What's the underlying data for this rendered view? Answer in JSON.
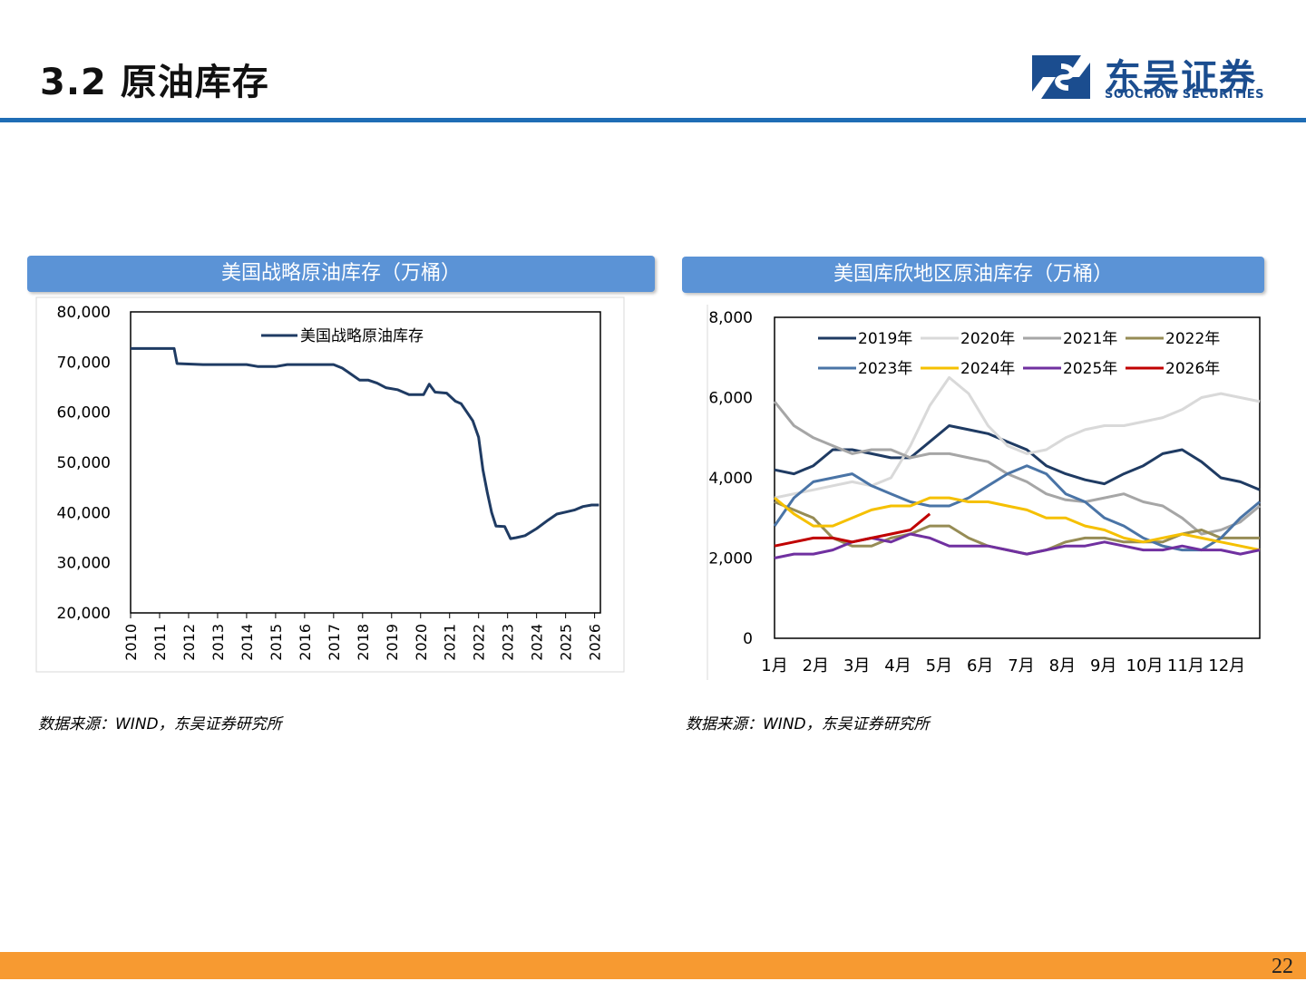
{
  "header": {
    "title": "3.2 原油库存"
  },
  "logo": {
    "cn": "东吴证券",
    "en": "SOOCHOW SECURITIES"
  },
  "panels": [
    {
      "title": "美国战略原油库存（万桶）",
      "source": "数据来源：WIND，东吴证券研究所"
    },
    {
      "title": "美国库欣地区原油库存（万桶）",
      "source": "数据来源：WIND，东吴证券研究所"
    }
  ],
  "footer": {
    "page_number": "22"
  },
  "chart_data": [
    {
      "type": "line",
      "title": "美国战略原油库存（万桶）",
      "ylim": [
        20000,
        80000
      ],
      "yticks": [
        "80,000",
        "70,000",
        "60,000",
        "50,000",
        "40,000",
        "30,000",
        "20,000"
      ],
      "xticks": [
        "2010",
        "2011",
        "2012",
        "2013",
        "2014",
        "2015",
        "2016",
        "2017",
        "2018",
        "2019",
        "2020",
        "2021",
        "2022",
        "2023",
        "2024",
        "2025",
        "2026"
      ],
      "legend_position": "top",
      "series": [
        {
          "name": "美国战略原油库存",
          "color": "#1f3b63",
          "points": [
            [
              2010.0,
              72700
            ],
            [
              2010.5,
              72700
            ],
            [
              2011.0,
              72700
            ],
            [
              2011.5,
              72700
            ],
            [
              2011.6,
              69700
            ],
            [
              2012.0,
              69600
            ],
            [
              2012.5,
              69500
            ],
            [
              2013.0,
              69500
            ],
            [
              2013.5,
              69500
            ],
            [
              2014.0,
              69500
            ],
            [
              2014.4,
              69100
            ],
            [
              2015.0,
              69100
            ],
            [
              2015.4,
              69500
            ],
            [
              2016.0,
              69500
            ],
            [
              2016.5,
              69500
            ],
            [
              2017.0,
              69500
            ],
            [
              2017.3,
              68800
            ],
            [
              2017.6,
              67600
            ],
            [
              2017.9,
              66400
            ],
            [
              2018.2,
              66400
            ],
            [
              2018.5,
              65800
            ],
            [
              2018.8,
              64900
            ],
            [
              2019.2,
              64500
            ],
            [
              2019.6,
              63500
            ],
            [
              2019.9,
              63500
            ],
            [
              2020.1,
              63500
            ],
            [
              2020.3,
              65600
            ],
            [
              2020.5,
              64000
            ],
            [
              2020.9,
              63800
            ],
            [
              2021.2,
              62200
            ],
            [
              2021.4,
              61700
            ],
            [
              2021.6,
              60000
            ],
            [
              2021.8,
              58300
            ],
            [
              2022.0,
              55000
            ],
            [
              2022.15,
              48500
            ],
            [
              2022.3,
              44000
            ],
            [
              2022.45,
              40000
            ],
            [
              2022.6,
              37300
            ],
            [
              2022.9,
              37200
            ],
            [
              2023.1,
              34800
            ],
            [
              2023.3,
              35000
            ],
            [
              2023.6,
              35400
            ],
            [
              2024.0,
              36800
            ],
            [
              2024.4,
              38500
            ],
            [
              2024.7,
              39700
            ],
            [
              2025.0,
              40100
            ],
            [
              2025.3,
              40500
            ],
            [
              2025.6,
              41200
            ],
            [
              2025.9,
              41500
            ],
            [
              2026.15,
              41500
            ]
          ]
        }
      ]
    },
    {
      "type": "line",
      "title": "美国库欣地区原油库存（万桶）",
      "ylim": [
        0,
        8000
      ],
      "yticks": [
        "8,000",
        "6,000",
        "4,000",
        "2,000",
        "0"
      ],
      "xticks": [
        "1月",
        "2月",
        "3月",
        "4月",
        "5月",
        "6月",
        "7月",
        "8月",
        "9月",
        "10月",
        "11月",
        "12月"
      ],
      "legend_position": "top",
      "series": [
        {
          "name": "2019年",
          "color": "#1f3b63",
          "values": [
            4200,
            4100,
            4300,
            4700,
            4700,
            4600,
            4500,
            4500,
            4900,
            5300,
            5200,
            5100,
            4900,
            4700,
            4300,
            4100,
            3950,
            3850,
            4100,
            4300,
            4600,
            4700,
            4400,
            4000,
            3900,
            3700
          ]
        },
        {
          "name": "2020年",
          "color": "#d9d9d9",
          "values": [
            3500,
            3600,
            3700,
            3800,
            3900,
            3800,
            4000,
            4800,
            5800,
            6500,
            6100,
            5300,
            4800,
            4600,
            4700,
            5000,
            5200,
            5300,
            5300,
            5400,
            5500,
            5700,
            6000,
            6100,
            6000,
            5900
          ]
        },
        {
          "name": "2021年",
          "color": "#a6a6a6",
          "values": [
            5900,
            5300,
            5000,
            4800,
            4600,
            4700,
            4700,
            4500,
            4600,
            4600,
            4500,
            4400,
            4100,
            3900,
            3600,
            3450,
            3400,
            3500,
            3600,
            3400,
            3300,
            3000,
            2600,
            2700,
            2900,
            3300
          ]
        },
        {
          "name": "2022年",
          "color": "#968c55",
          "values": [
            3400,
            3200,
            3000,
            2500,
            2300,
            2300,
            2500,
            2600,
            2800,
            2800,
            2500,
            2300,
            2200,
            2100,
            2200,
            2400,
            2500,
            2500,
            2400,
            2400,
            2400,
            2600,
            2700,
            2500,
            2500,
            2500
          ]
        },
        {
          "name": "2023年",
          "color": "#4a74a6",
          "values": [
            2800,
            3500,
            3900,
            4000,
            4100,
            3800,
            3600,
            3400,
            3300,
            3300,
            3500,
            3800,
            4100,
            4300,
            4100,
            3600,
            3400,
            3000,
            2800,
            2500,
            2300,
            2200,
            2200,
            2500,
            3000,
            3400
          ]
        },
        {
          "name": "2024年",
          "color": "#f5c000",
          "values": [
            3500,
            3100,
            2800,
            2800,
            3000,
            3200,
            3300,
            3300,
            3500,
            3500,
            3400,
            3400,
            3300,
            3200,
            3000,
            3000,
            2800,
            2700,
            2500,
            2400,
            2500,
            2600,
            2500,
            2400,
            2300,
            2200
          ]
        },
        {
          "name": "2025年",
          "color": "#7030a0",
          "values": [
            2000,
            2100,
            2100,
            2200,
            2400,
            2500,
            2400,
            2600,
            2500,
            2300,
            2300,
            2300,
            2200,
            2100,
            2200,
            2300,
            2300,
            2400,
            2300,
            2200,
            2200,
            2300,
            2200,
            2200,
            2100,
            2200
          ]
        },
        {
          "name": "2026年",
          "color": "#c00000",
          "values": [
            2300,
            2400,
            2500,
            2500,
            2400,
            2500,
            2600,
            2700,
            3100
          ]
        }
      ]
    }
  ]
}
